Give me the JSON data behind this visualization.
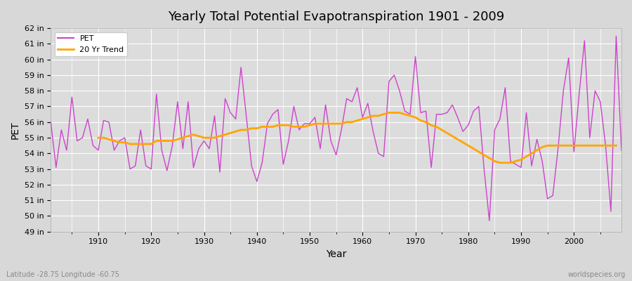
{
  "title": "Yearly Total Potential Evapotranspiration 1901 - 2009",
  "xlabel": "Year",
  "ylabel": "PET",
  "footer_left": "Latitude -28.75 Longitude -60.75",
  "footer_right": "worldspecies.org",
  "pet_color": "#cc44cc",
  "trend_color": "#ffa500",
  "bg_color": "#e8e8e8",
  "plot_bg_color": "#dcdcdc",
  "grid_color": "#ffffff",
  "ylim": [
    49,
    62
  ],
  "yticks": [
    49,
    50,
    51,
    52,
    53,
    54,
    55,
    56,
    57,
    58,
    59,
    60,
    61,
    62
  ],
  "years": [
    1901,
    1902,
    1903,
    1904,
    1905,
    1906,
    1907,
    1908,
    1909,
    1910,
    1911,
    1912,
    1913,
    1914,
    1915,
    1916,
    1917,
    1918,
    1919,
    1920,
    1921,
    1922,
    1923,
    1924,
    1925,
    1926,
    1927,
    1928,
    1929,
    1930,
    1931,
    1932,
    1933,
    1934,
    1935,
    1936,
    1937,
    1938,
    1939,
    1940,
    1941,
    1942,
    1943,
    1944,
    1945,
    1946,
    1947,
    1948,
    1949,
    1950,
    1951,
    1952,
    1953,
    1954,
    1955,
    1956,
    1957,
    1958,
    1959,
    1960,
    1961,
    1962,
    1963,
    1964,
    1965,
    1966,
    1967,
    1968,
    1969,
    1970,
    1971,
    1972,
    1973,
    1974,
    1975,
    1976,
    1977,
    1978,
    1979,
    1980,
    1981,
    1982,
    1983,
    1984,
    1985,
    1986,
    1987,
    1988,
    1989,
    1990,
    1991,
    1992,
    1993,
    1994,
    1995,
    1996,
    1997,
    1998,
    1999,
    2000,
    2001,
    2002,
    2003,
    2004,
    2005,
    2006,
    2007,
    2008,
    2009
  ],
  "pet_values": [
    56.0,
    53.1,
    55.5,
    54.2,
    57.6,
    54.8,
    55.0,
    56.2,
    54.5,
    54.2,
    56.1,
    56.0,
    54.2,
    54.8,
    55.0,
    53.0,
    53.2,
    55.5,
    53.2,
    53.0,
    57.8,
    54.2,
    52.9,
    54.5,
    57.3,
    54.3,
    57.3,
    53.1,
    54.3,
    54.8,
    54.3,
    56.4,
    52.8,
    57.5,
    56.6,
    56.2,
    59.5,
    56.4,
    53.2,
    52.2,
    53.4,
    55.9,
    56.5,
    56.8,
    53.3,
    54.8,
    57.0,
    55.5,
    55.9,
    55.9,
    56.3,
    54.3,
    57.1,
    54.8,
    53.9,
    55.5,
    57.5,
    57.3,
    58.2,
    56.3,
    57.2,
    55.4,
    54.0,
    53.8,
    58.6,
    59.0,
    58.0,
    56.7,
    56.5,
    60.2,
    56.6,
    56.7,
    53.1,
    56.5,
    56.5,
    56.6,
    57.1,
    56.3,
    55.4,
    55.8,
    56.7,
    57.0,
    53.0,
    49.7,
    55.5,
    56.2,
    58.2,
    53.5,
    53.3,
    53.1,
    56.6,
    53.2,
    54.9,
    53.5,
    51.1,
    51.3,
    54.3,
    58.0,
    60.1,
    54.1,
    57.8,
    61.2,
    55.0,
    58.0,
    57.3,
    54.5,
    50.3,
    61.5,
    54.2
  ],
  "trend_values": [
    null,
    null,
    null,
    null,
    null,
    null,
    null,
    null,
    null,
    55.0,
    55.0,
    54.9,
    54.8,
    54.7,
    54.7,
    54.6,
    54.6,
    54.6,
    54.6,
    54.6,
    54.8,
    54.8,
    54.8,
    54.8,
    54.9,
    55.0,
    55.1,
    55.2,
    55.1,
    55.0,
    55.0,
    55.0,
    55.1,
    55.2,
    55.3,
    55.4,
    55.5,
    55.5,
    55.6,
    55.6,
    55.7,
    55.7,
    55.7,
    55.8,
    55.8,
    55.8,
    55.7,
    55.7,
    55.7,
    55.8,
    55.9,
    55.9,
    55.9,
    55.9,
    55.9,
    55.9,
    56.0,
    56.0,
    56.1,
    56.2,
    56.3,
    56.4,
    56.4,
    56.5,
    56.6,
    56.6,
    56.6,
    56.5,
    56.4,
    56.3,
    56.1,
    56.0,
    55.8,
    55.7,
    55.5,
    55.3,
    55.1,
    54.9,
    54.7,
    54.5,
    54.3,
    54.1,
    53.9,
    53.7,
    53.5,
    53.4,
    53.4,
    53.4,
    53.5,
    53.6,
    53.8,
    54.0,
    54.2,
    54.4,
    54.5,
    54.5,
    54.5,
    54.5,
    54.5,
    54.5,
    54.5,
    54.5,
    54.5,
    54.5,
    54.5,
    54.5,
    54.5,
    54.5
  ]
}
